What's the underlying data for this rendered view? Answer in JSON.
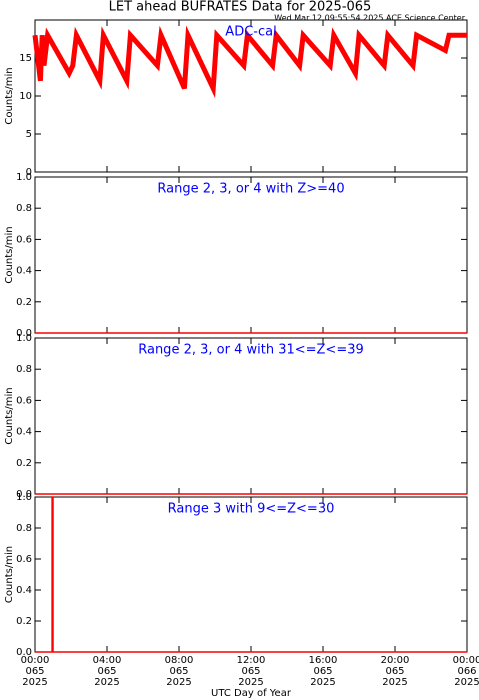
{
  "chart_data": [
    {
      "type": "line",
      "title": "LET ahead BUFRATES Data for 2025-065",
      "subtitle": "Wed Mar 12 09:55:54 2025 ACE Science Center",
      "annotation": "ADC-cal",
      "ylabel": "Counts/min",
      "ylim": [
        0,
        20
      ],
      "yticks": [
        0,
        5,
        10,
        15
      ],
      "series": [
        {
          "color": "#ff0000",
          "x": [
            0,
            0.3,
            0.4,
            0.5,
            0.7,
            1.9,
            2.1,
            2.3,
            3.6,
            3.8,
            5.1,
            5.3,
            6.8,
            7,
            8.3,
            8.5,
            9.9,
            10.1,
            11.6,
            11.8,
            13.2,
            13.4,
            14.7,
            14.9,
            16.4,
            16.6,
            17.8,
            18,
            19.4,
            19.6,
            21,
            21.2,
            22.8,
            23,
            24
          ],
          "values": [
            18,
            12,
            18,
            14,
            18,
            13,
            14,
            18,
            12,
            18,
            12,
            18,
            14,
            18,
            11,
            18,
            11,
            18,
            14,
            18,
            14,
            18,
            14,
            18,
            14,
            18,
            13,
            18,
            14,
            18,
            14,
            18,
            16,
            18,
            18
          ]
        }
      ]
    },
    {
      "type": "line",
      "annotation": "Range 2, 3, or 4 with Z>=40",
      "ylabel": "Counts/min",
      "ylim": [
        0,
        1
      ],
      "yticks": [
        {
          "value": 0,
          "label": "0.0"
        },
        {
          "value": 0.2,
          "label": "0.2"
        },
        {
          "value": 0.4,
          "label": "0.4"
        },
        {
          "value": 0.6,
          "label": "0.6"
        },
        {
          "value": 0.8,
          "label": "0.8"
        },
        {
          "value": 1,
          "label": "1.0"
        }
      ],
      "series": [
        {
          "color": "#ff0000",
          "x": [
            0,
            24
          ],
          "values": [
            0,
            0
          ]
        }
      ]
    },
    {
      "type": "line",
      "annotation": "Range 2, 3, or 4 with 31<=Z<=39",
      "ylabel": "Counts/min",
      "ylim": [
        0,
        1
      ],
      "yticks": [
        {
          "value": 0,
          "label": "0.0"
        },
        {
          "value": 0.2,
          "label": "0.2"
        },
        {
          "value": 0.4,
          "label": "0.4"
        },
        {
          "value": 0.6,
          "label": "0.6"
        },
        {
          "value": 0.8,
          "label": "0.8"
        },
        {
          "value": 1,
          "label": "1.0"
        }
      ],
      "series": [
        {
          "color": "#ff0000",
          "x": [
            0,
            24
          ],
          "values": [
            0,
            0
          ]
        }
      ]
    },
    {
      "type": "line",
      "annotation": "Range 3 with 9<=Z<=30",
      "ylabel": "Counts/min",
      "ylim": [
        0,
        1
      ],
      "yticks": [
        {
          "value": 0,
          "label": "0.0"
        },
        {
          "value": 0.2,
          "label": "0.2"
        },
        {
          "value": 0.4,
          "label": "0.4"
        },
        {
          "value": 0.6,
          "label": "0.6"
        },
        {
          "value": 0.8,
          "label": "0.8"
        },
        {
          "value": 1,
          "label": "1.0"
        }
      ],
      "series": [
        {
          "color": "#ff0000",
          "x": [
            0,
            0.95,
            0.95,
            1.0,
            1.0,
            24
          ],
          "values": [
            0,
            0,
            1,
            1,
            0,
            0
          ]
        }
      ],
      "xlabel": "UTC Day of Year",
      "xlim": [
        0,
        24
      ],
      "xticks": [
        {
          "value": 0,
          "label": [
            "00:00",
            "065",
            "2025"
          ]
        },
        {
          "value": 4,
          "label": [
            "04:00",
            "065",
            "2025"
          ]
        },
        {
          "value": 8,
          "label": [
            "08:00",
            "065",
            "2025"
          ]
        },
        {
          "value": 12,
          "label": [
            "12:00",
            "065",
            "2025"
          ]
        },
        {
          "value": 16,
          "label": [
            "16:00",
            "065",
            "2025"
          ]
        },
        {
          "value": 20,
          "label": [
            "20:00",
            "065",
            "2025"
          ]
        },
        {
          "value": 24,
          "label": [
            "00:00",
            "066",
            "2025"
          ]
        }
      ]
    }
  ]
}
